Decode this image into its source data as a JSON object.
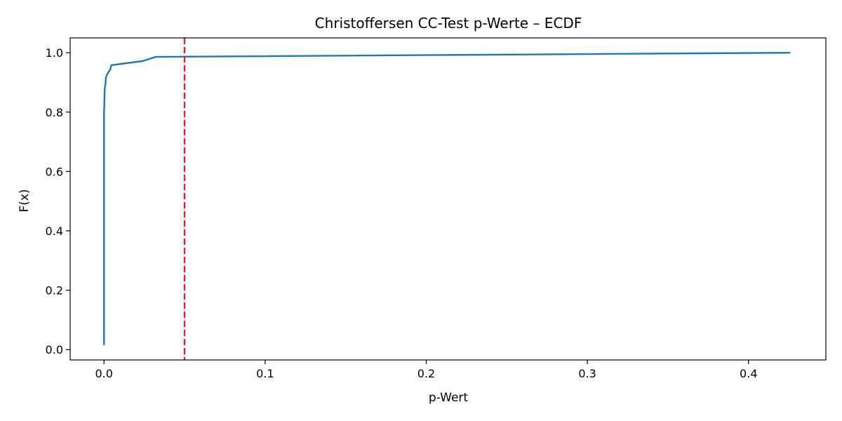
{
  "chart_data": {
    "type": "line",
    "title": "Christoffersen CC-Test p-Werte – ECDF",
    "xlabel": "p-Wert",
    "ylabel": "F(x)",
    "xlim": [
      -0.021,
      0.448
    ],
    "ylim": [
      -0.035,
      1.05
    ],
    "x_ticks": [
      0.0,
      0.1,
      0.2,
      0.3,
      0.4
    ],
    "x_tick_labels": [
      "0.0",
      "0.1",
      "0.2",
      "0.3",
      "0.4"
    ],
    "y_ticks": [
      0.0,
      0.2,
      0.4,
      0.6,
      0.8,
      1.0
    ],
    "y_tick_labels": [
      "0.0",
      "0.2",
      "0.4",
      "0.6",
      "0.8",
      "1.0"
    ],
    "grid": false,
    "legend": "none",
    "series": [
      {
        "color": "#1f77b4",
        "x": [
          0.0,
          0.0,
          0.0002,
          0.0003,
          0.0004,
          0.0005,
          0.0006,
          0.0007,
          0.0008,
          0.001,
          0.0012,
          0.0015,
          0.002,
          0.0025,
          0.003,
          0.0035,
          0.004,
          0.0045,
          0.024,
          0.032,
          0.426
        ],
        "y": [
          0.015,
          0.8,
          0.82,
          0.85,
          0.875,
          0.88,
          0.885,
          0.89,
          0.89,
          0.9,
          0.915,
          0.922,
          0.928,
          0.932,
          0.937,
          0.94,
          0.945,
          0.958,
          0.972,
          0.986,
          1.0
        ]
      }
    ],
    "reference_line": {
      "orientation": "vertical",
      "x": 0.05,
      "color": "#d62728",
      "style": "dashed"
    }
  }
}
